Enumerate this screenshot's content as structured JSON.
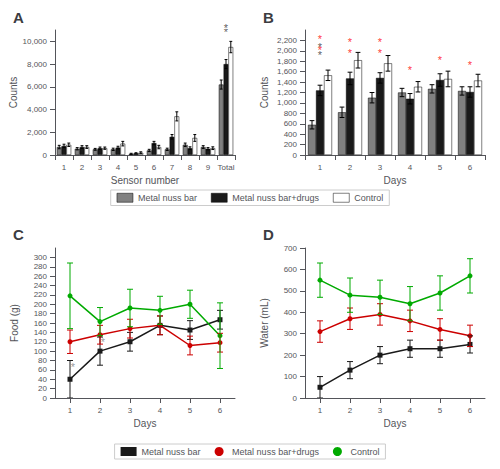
{
  "chart_data": [
    {
      "type": "bar",
      "title": "A",
      "xlabel": "Sensor number",
      "ylabel": "Counts",
      "categories": [
        "1",
        "2",
        "3",
        "4",
        "5",
        "6",
        "7",
        "8",
        "9",
        "Total"
      ],
      "series": [
        {
          "name": "Metal nuss bar",
          "color": "#808080",
          "values": [
            700,
            550,
            500,
            500,
            100,
            400,
            500,
            900,
            700,
            6200
          ],
          "errors": [
            150,
            100,
            80,
            100,
            50,
            100,
            100,
            150,
            120,
            400
          ]
        },
        {
          "name": "Metal nuss bar+drugs",
          "color": "#1a1a1a",
          "values": [
            800,
            700,
            600,
            650,
            150,
            1050,
            1600,
            600,
            550,
            8000
          ],
          "errors": [
            150,
            120,
            100,
            120,
            50,
            150,
            200,
            120,
            100,
            400
          ]
        },
        {
          "name": "Control",
          "color": "#ffffff",
          "values": [
            900,
            700,
            600,
            1000,
            200,
            700,
            3400,
            1500,
            600,
            9500
          ],
          "errors": [
            150,
            120,
            100,
            200,
            80,
            150,
            400,
            300,
            120,
            500
          ]
        }
      ],
      "ylim": [
        0,
        11000
      ],
      "yticks": [
        0,
        {
          "value": 2000,
          "label": "2,000"
        },
        {
          "value": 4000,
          "label": "4,000"
        },
        {
          "value": 6000,
          "label": "6,000"
        },
        {
          "value": 8000,
          "label": "8,000"
        },
        {
          "value": 10000,
          "label": "10,000"
        }
      ],
      "grid": false,
      "legend": "bottom",
      "annotations": [
        {
          "text": "*",
          "x": "Total",
          "y": 10300
        },
        {
          "text": "*",
          "x": "Total",
          "y": 10700
        }
      ]
    },
    {
      "type": "bar",
      "title": "B",
      "xlabel": "Days",
      "ylabel": "Counts",
      "categories": [
        "1",
        "2",
        "3",
        "4",
        "5",
        "6"
      ],
      "series": [
        {
          "name": "Metal nuss bar",
          "color": "#808080",
          "values": [
            580,
            820,
            1100,
            1200,
            1270,
            1230
          ],
          "errors": [
            80,
            100,
            100,
            80,
            80,
            80
          ]
        },
        {
          "name": "Metal nuss bar+drugs",
          "color": "#1a1a1a",
          "values": [
            1240,
            1470,
            1480,
            1080,
            1440,
            1210
          ],
          "errors": [
            100,
            120,
            100,
            100,
            120,
            100
          ]
        },
        {
          "name": "Control",
          "color": "#ffffff",
          "values": [
            1530,
            1820,
            1760,
            1310,
            1460,
            1430
          ],
          "errors": [
            100,
            150,
            150,
            100,
            150,
            120
          ]
        }
      ],
      "ylim": [
        0,
        2400
      ],
      "yticks": [
        0,
        200,
        400,
        600,
        800,
        {
          "value": 1000,
          "label": "1,000"
        },
        {
          "value": 1200,
          "label": "1,200"
        },
        {
          "value": 1400,
          "label": "1,400"
        },
        {
          "value": 1600,
          "label": "1,600"
        },
        {
          "value": 1800,
          "label": "1,800"
        },
        {
          "value": 2000,
          "label": "2,000"
        },
        {
          "value": 2200,
          "label": "2,200"
        }
      ],
      "grid": false,
      "annotations": [
        {
          "text": "*",
          "x": "1",
          "y": 1970
        },
        {
          "text": "*",
          "x": "1",
          "y": 1820
        },
        {
          "text": "*",
          "x": "1",
          "y": 2120,
          "color": "red"
        },
        {
          "text": "*",
          "x": "2",
          "y": 2070,
          "color": "red"
        },
        {
          "text": "*",
          "x": "3",
          "y": 2070,
          "color": "red"
        },
        {
          "text": "*",
          "x": "4",
          "y": 1520,
          "color": "red"
        },
        {
          "text": "*",
          "x": "5",
          "y": 1720,
          "color": "red"
        },
        {
          "text": "*",
          "x": "6",
          "y": 1620,
          "color": "red"
        },
        {
          "text": "*",
          "x": "1",
          "y": 1910,
          "color": "red"
        },
        {
          "text": "*",
          "x": "2",
          "y": 1860,
          "color": "red"
        },
        {
          "text": "*",
          "x": "3",
          "y": 1860,
          "color": "red"
        }
      ]
    },
    {
      "type": "line",
      "title": "C",
      "xlabel": "Days",
      "ylabel": "Food (g)",
      "x": [
        1,
        2,
        3,
        4,
        5,
        6
      ],
      "series": [
        {
          "name": "Metal nuss bar",
          "color": "#1a1a1a",
          "marker": "square",
          "values": [
            40,
            100,
            120,
            155,
            145,
            167
          ],
          "errors": [
            40,
            30,
            20,
            20,
            20,
            20
          ]
        },
        {
          "name": "Metal nuss bar+drugs",
          "color": "#cc0000",
          "marker": "circle",
          "values": [
            120,
            135,
            148,
            155,
            112,
            118
          ],
          "errors": [
            25,
            20,
            20,
            20,
            20,
            20
          ]
        },
        {
          "name": "Control",
          "color": "#00aa00",
          "marker": "circle",
          "values": [
            218,
            163,
            192,
            187,
            200,
            133
          ],
          "errors": [
            70,
            30,
            40,
            30,
            30,
            70
          ]
        }
      ],
      "xlim": [
        0.5,
        6.5
      ],
      "xticks": [
        1,
        2,
        3,
        4,
        5,
        6
      ],
      "ylim": [
        0,
        320
      ],
      "yticks": [
        0,
        20,
        40,
        60,
        80,
        100,
        120,
        140,
        160,
        180,
        200,
        220,
        240,
        260,
        280,
        300
      ],
      "grid": false,
      "legend": "bottom",
      "annotations": [
        {
          "text": "*",
          "x": 1.1,
          "y": 55,
          "color": "gray"
        },
        {
          "text": "*",
          "x": 2.1,
          "y": 108,
          "color": "gray"
        }
      ]
    },
    {
      "type": "line",
      "title": "D",
      "xlabel": "Days",
      "ylabel": "Water (mL)",
      "x": [
        1,
        2,
        3,
        4,
        5,
        6
      ],
      "series": [
        {
          "name": "Metal nuss bar",
          "color": "#1a1a1a",
          "marker": "square",
          "values": [
            50,
            130,
            200,
            230,
            230,
            250
          ],
          "errors": [
            50,
            40,
            40,
            40,
            40,
            40
          ]
        },
        {
          "name": "Metal nuss bar+drugs",
          "color": "#cc0000",
          "marker": "circle",
          "values": [
            310,
            370,
            390,
            360,
            320,
            290
          ],
          "errors": [
            50,
            50,
            50,
            50,
            50,
            50
          ]
        },
        {
          "name": "Control",
          "color": "#00aa00",
          "marker": "circle",
          "values": [
            550,
            480,
            470,
            440,
            490,
            570
          ],
          "errors": [
            80,
            80,
            80,
            80,
            80,
            80
          ]
        }
      ],
      "xlim": [
        0.5,
        6.5
      ],
      "xticks": [
        1,
        2,
        3,
        4,
        5,
        6
      ],
      "ylim": [
        0,
        700
      ],
      "yticks": [
        0,
        100,
        200,
        300,
        400,
        500,
        600,
        700
      ],
      "grid": false
    }
  ]
}
